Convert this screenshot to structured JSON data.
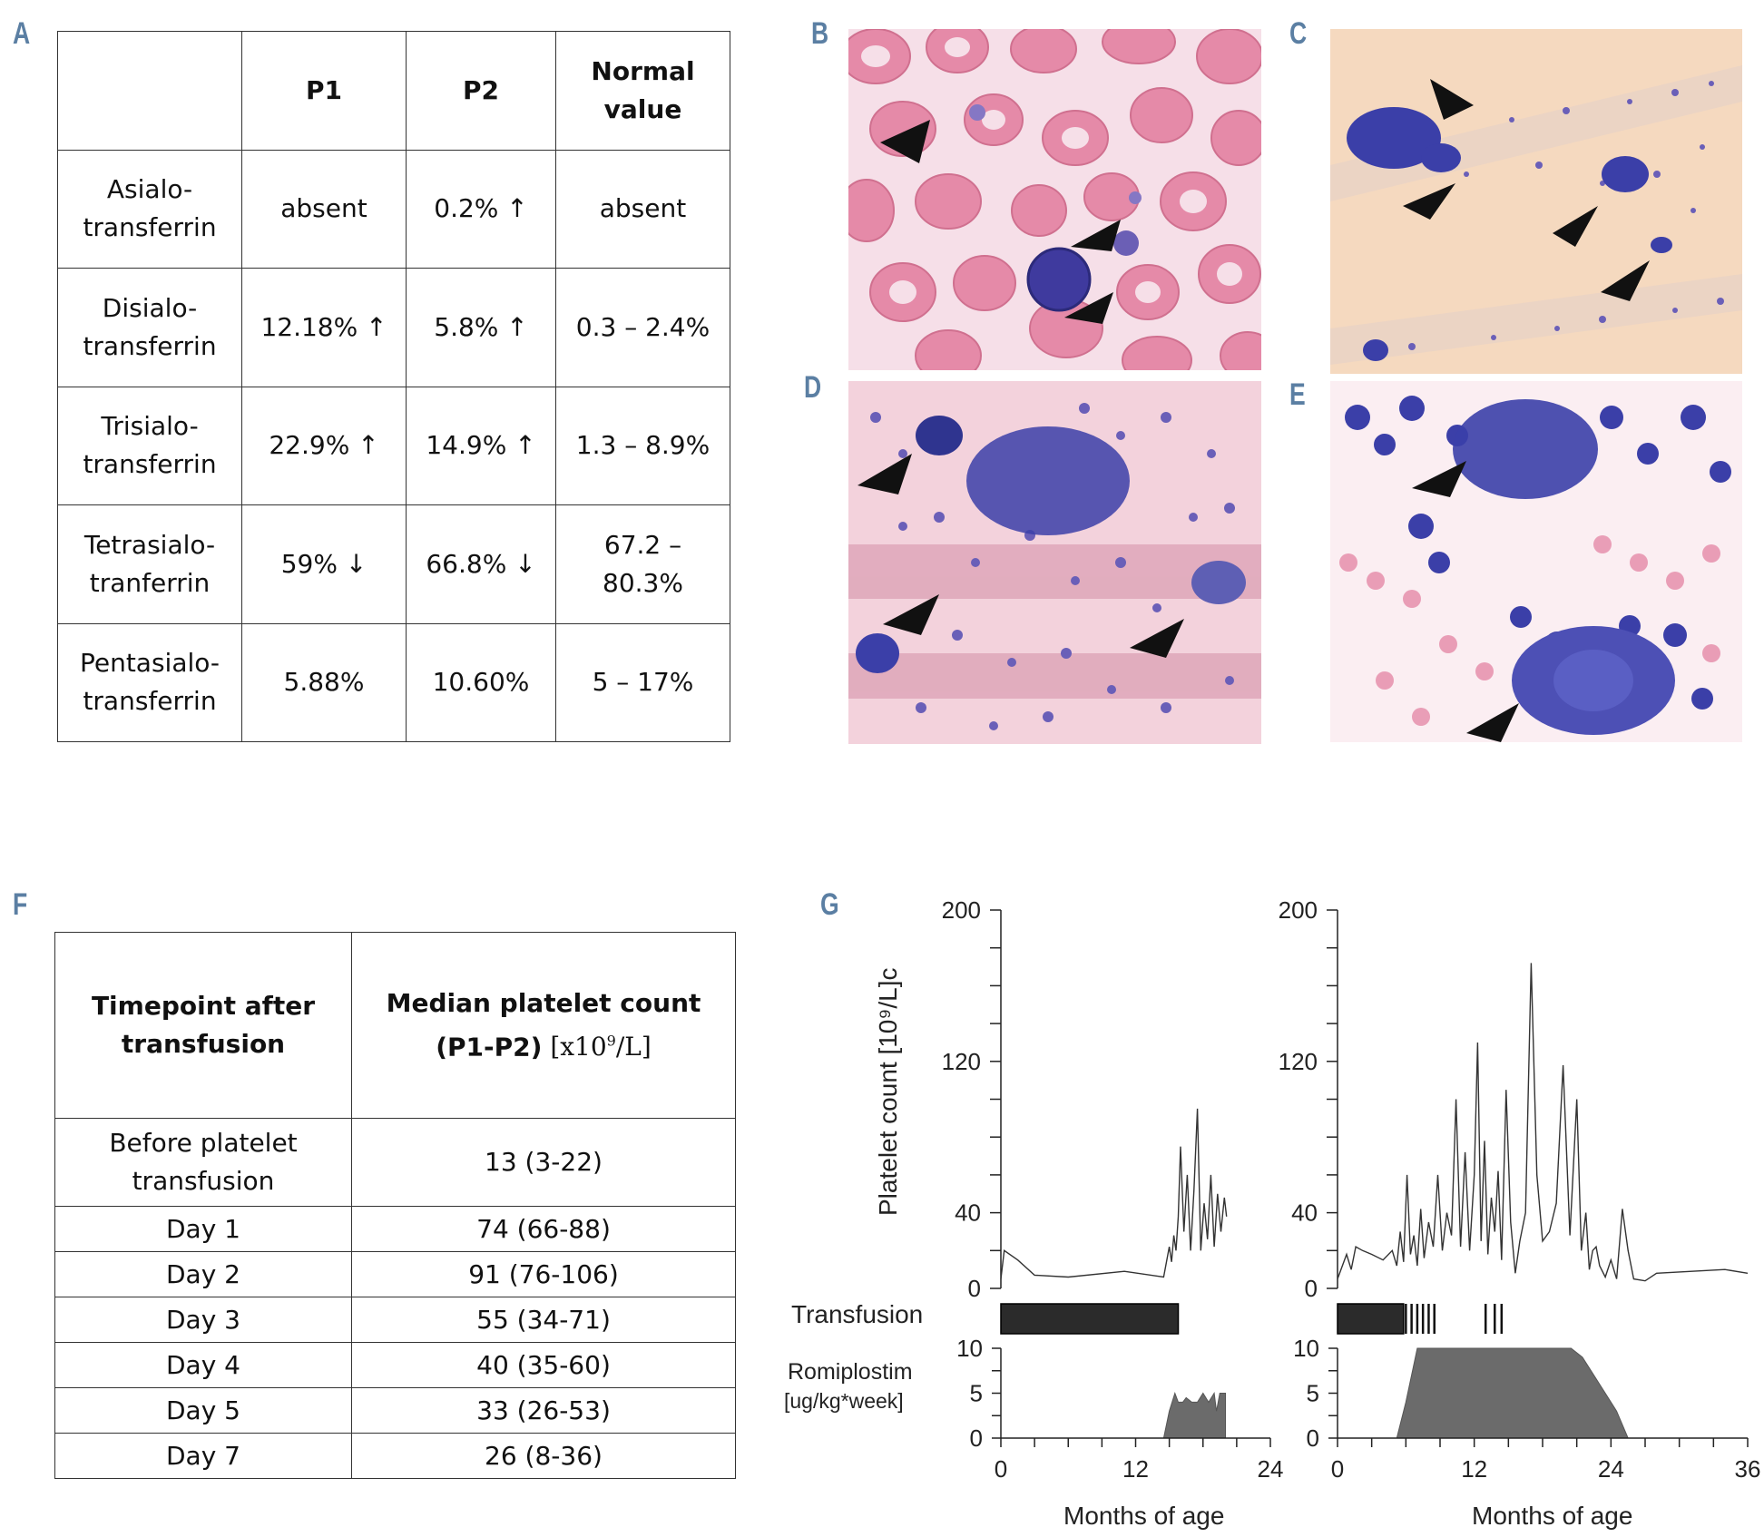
{
  "panel_letters": {
    "a": "A",
    "b": "B",
    "c": "C",
    "d": "D",
    "e": "E",
    "f": "F",
    "g": "G"
  },
  "table_a": {
    "headers": [
      "",
      "P1",
      "P2",
      "Normal value"
    ],
    "rows": [
      {
        "label_line1": "Asialo-",
        "label_line2": "transferrin",
        "p1": "absent",
        "p2": "0.2% ↑",
        "normal": "absent"
      },
      {
        "label_line1": "Disialo-",
        "label_line2": "transferrin",
        "p1": "12.18% ↑",
        "p2": "5.8% ↑",
        "normal": "0.3 – 2.4%"
      },
      {
        "label_line1": "Trisialo-",
        "label_line2": "transferrin",
        "p1": "22.9% ↑",
        "p2": "14.9% ↑",
        "normal": "1.3 – 8.9%"
      },
      {
        "label_line1": "Tetrasialo-",
        "label_line2": "tranferrin",
        "p1": "59% ↓",
        "p2": "66.8% ↓",
        "normal": "67.2 – 80.3%"
      },
      {
        "label_line1": "Pentasialo-",
        "label_line2": "transferrin",
        "p1": "5.88%",
        "p2": "10.60%",
        "normal": "5 – 17%"
      }
    ]
  },
  "table_f": {
    "header_col1_line1": "Timepoint  after",
    "header_col1_line2": "transfusion",
    "header_col2_line1": "Median platelet count",
    "header_col2_bold": "(P1-P2)",
    "header_col2_unit_pre": " [x10",
    "header_col2_unit_sup": "9",
    "header_col2_unit_post": "/L]",
    "rows": [
      {
        "timepoint_line1": "Before platelet",
        "timepoint_line2": "transfusion",
        "value": "13 (3-22)"
      },
      {
        "timepoint_line1": "Day 1",
        "timepoint_line2": "",
        "value": "74 (66-88)"
      },
      {
        "timepoint_line1": "Day 2",
        "timepoint_line2": "",
        "value": "91 (76-106)"
      },
      {
        "timepoint_line1": "Day 3",
        "timepoint_line2": "",
        "value": "55 (34-71)"
      },
      {
        "timepoint_line1": "Day 4",
        "timepoint_line2": "",
        "value": "40 (35-60)"
      },
      {
        "timepoint_line1": "Day 5",
        "timepoint_line2": "",
        "value": "33 (26-53)"
      },
      {
        "timepoint_line1": "Day 7",
        "timepoint_line2": "",
        "value": "26 (8-36)"
      }
    ]
  },
  "colors": {
    "panel_letter": "#5b7fa3",
    "rbc": "#e58aa8",
    "smear_bg_b": "#f4dbe6",
    "smear_bg_c": "#f5d9bf",
    "cell_blue": "#3b3fa8",
    "transfusion_bar": "#2b2b2b",
    "romiplostim_fill": "#6b6b6b"
  },
  "chart_data": [
    {
      "type": "line",
      "panel": "G-left",
      "ylabel": "Platelet count  [10⁹/L]c",
      "xlabel": "Months  of age",
      "ylim": [
        0,
        200
      ],
      "yticks": [
        "0",
        "40",
        "120",
        "200"
      ],
      "xlim": [
        0,
        24
      ],
      "xticks": [
        "0",
        "12",
        "24"
      ],
      "platelet_series": {
        "x": [
          0,
          0.3,
          1.5,
          3,
          6,
          11,
          14.5,
          15,
          15.2,
          15.4,
          15.6,
          15.8,
          16,
          16.3,
          16.6,
          16.9,
          17.2,
          17.5,
          17.8,
          18.1,
          18.4,
          18.7,
          19,
          19.3,
          19.6,
          19.9,
          20.1
        ],
        "y": [
          5,
          20,
          15,
          7,
          6,
          9,
          6,
          22,
          14,
          28,
          20,
          38,
          75,
          30,
          60,
          20,
          52,
          95,
          20,
          45,
          26,
          60,
          22,
          50,
          30,
          48,
          38
        ]
      },
      "transfusion_label": "Transfusion",
      "transfusion_bars": [
        [
          0,
          15.8
        ]
      ],
      "transfusion_ticks": [],
      "romiplostim_label_line1": "Romiplostim",
      "romiplostim_label_line2": "[ug/kg*week]",
      "romiplostim_ylim": [
        0,
        10
      ],
      "romiplostim_yticks": [
        "0",
        "5",
        "10"
      ],
      "romiplostim_series": {
        "x": [
          14.5,
          15,
          15.5,
          15.8,
          16.2,
          16.5,
          17,
          17.5,
          18,
          18.5,
          19,
          19.2,
          19.5,
          20,
          20
        ],
        "y": [
          0,
          3,
          5,
          4,
          4,
          4.5,
          4,
          4,
          5,
          4,
          5,
          3,
          5,
          5,
          0
        ]
      }
    },
    {
      "type": "line",
      "panel": "G-right",
      "xlabel": "Months  of age",
      "ylim": [
        0,
        200
      ],
      "yticks": [
        "0",
        "40",
        "120",
        "200"
      ],
      "xlim": [
        0,
        36
      ],
      "xticks": [
        "0",
        "12",
        "24",
        "36"
      ],
      "platelet_series": {
        "x": [
          0,
          0.8,
          1.2,
          1.6,
          2.2,
          3,
          4,
          4.8,
          5.2,
          5.5,
          5.8,
          6.1,
          6.4,
          6.7,
          7,
          7.3,
          7.6,
          8,
          8.4,
          8.8,
          9.2,
          9.6,
          10,
          10.4,
          10.8,
          11.2,
          11.6,
          12,
          12.3,
          12.6,
          12.9,
          13.2,
          13.5,
          13.8,
          14.1,
          14.4,
          14.8,
          15.2,
          15.6,
          16,
          16.5,
          17,
          17.5,
          18,
          18.6,
          19.2,
          19.8,
          20.4,
          21,
          21.4,
          21.8,
          22.1,
          22.4,
          22.7,
          23,
          23.5,
          24,
          24.5,
          25,
          25.5,
          26,
          27,
          28,
          34,
          36
        ],
        "y": [
          5,
          18,
          10,
          22,
          20,
          18,
          15,
          20,
          12,
          30,
          14,
          60,
          18,
          28,
          12,
          42,
          16,
          35,
          22,
          60,
          20,
          40,
          28,
          100,
          22,
          72,
          20,
          60,
          130,
          25,
          78,
          18,
          48,
          30,
          62,
          15,
          105,
          35,
          8,
          25,
          40,
          172,
          60,
          25,
          30,
          45,
          118,
          28,
          100,
          20,
          40,
          10,
          20,
          22,
          12,
          6,
          15,
          5,
          42,
          20,
          5,
          4,
          8,
          10,
          8
        ]
      },
      "transfusion_label": "",
      "transfusion_bars": [
        [
          0,
          5.8
        ]
      ],
      "transfusion_ticks": [
        6,
        6.5,
        7,
        7.5,
        8,
        8.5,
        13,
        13.8,
        14.4
      ],
      "romiplostim_ylim": [
        0,
        10
      ],
      "romiplostim_yticks": [
        "0",
        "5",
        "10"
      ],
      "romiplostim_series": {
        "x": [
          5.2,
          6,
          7,
          20.5,
          21.5,
          22.5,
          23.5,
          24.5,
          25.5
        ],
        "y": [
          0,
          4,
          10,
          10,
          9,
          7,
          5,
          3,
          0
        ]
      }
    }
  ]
}
